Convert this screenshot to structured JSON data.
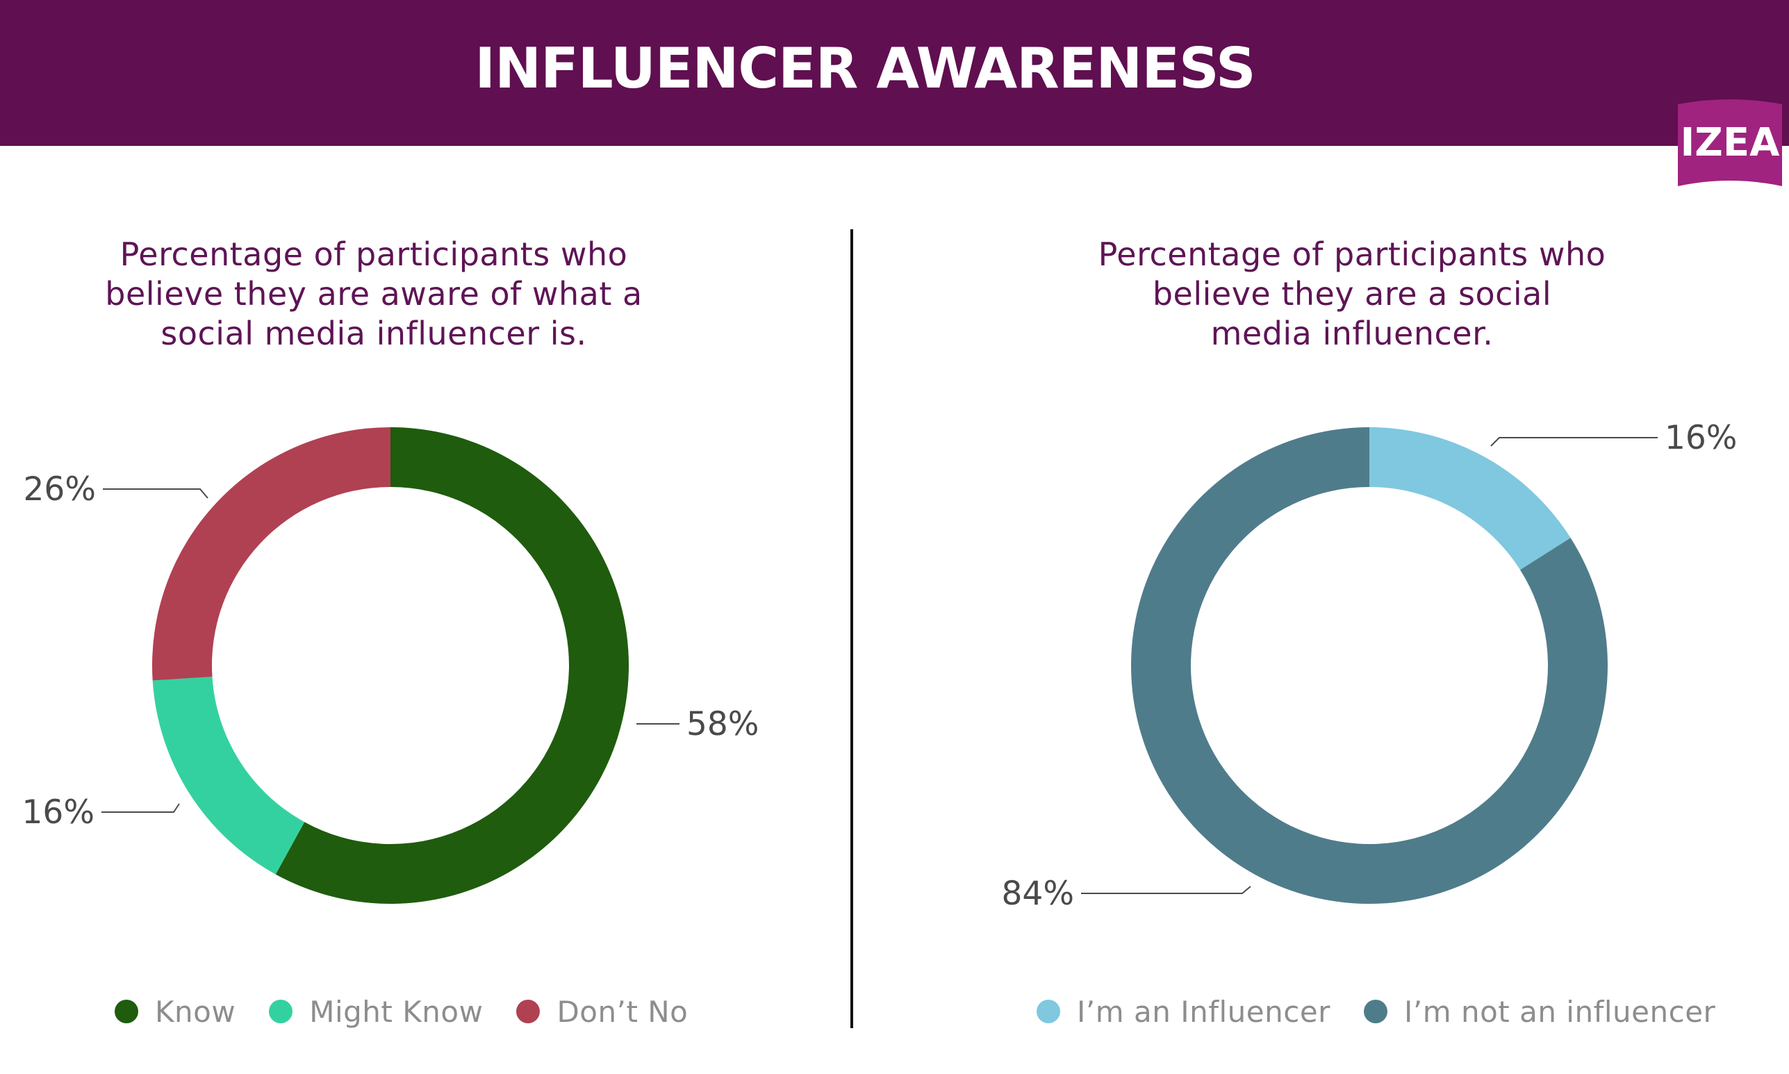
{
  "header": {
    "title": "INFLUENCER AWARENESS",
    "logo_text": "IZEA",
    "color": "#600f50"
  },
  "chart_data": [
    {
      "type": "pie",
      "subtype": "donut",
      "title": "Percentage of participants who believe they are aware of what a social media influencer is.",
      "title_lines": [
        "Percentage of participants who",
        "believe they are aware of what a",
        "social media influencer is."
      ],
      "series": [
        {
          "name": "Know",
          "value": 58,
          "label": "58%",
          "color": "#1f5c0e"
        },
        {
          "name": "Might Know",
          "value": 16,
          "label": "16%",
          "color": "#34d1a0"
        },
        {
          "name": "Don’t No",
          "value": 26,
          "label": "26%",
          "color": "#b04152"
        }
      ],
      "legend_position": "bottom"
    },
    {
      "type": "pie",
      "subtype": "donut",
      "title": "Percentage of participants who believe they are a social media influencer.",
      "title_lines": [
        "Percentage of participants who",
        "believe they are a social",
        "media influencer."
      ],
      "series": [
        {
          "name": "I’m an Influencer",
          "value": 16,
          "label": "16%",
          "color": "#7fc8e0"
        },
        {
          "name": "I’m not an influencer",
          "value": 84,
          "label": "84%",
          "color": "#4f7c8b"
        }
      ],
      "legend_position": "bottom"
    }
  ]
}
